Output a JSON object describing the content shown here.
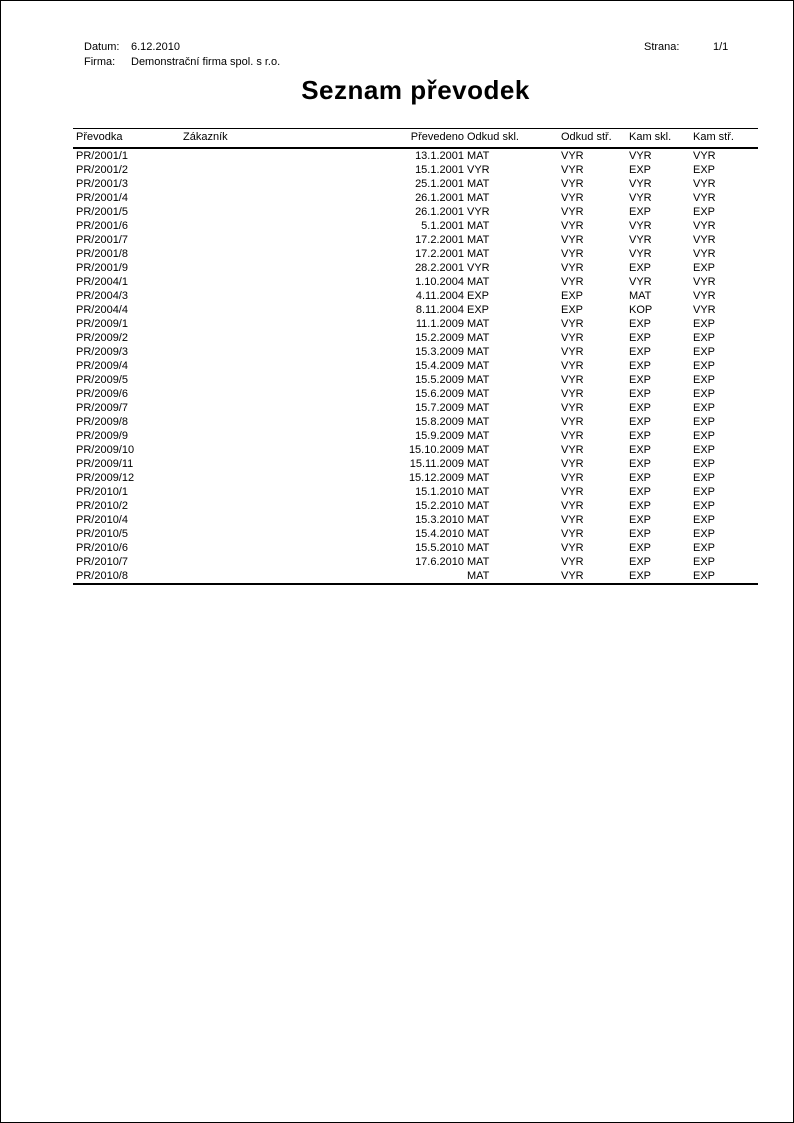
{
  "header": {
    "datum_label": "Datum:",
    "datum_value": "6.12.2010",
    "firma_label": "Firma:",
    "firma_value": "Demonstrační firma spol. s r.o.",
    "strana_label": "Strana:",
    "strana_value": "1/1"
  },
  "title": "Seznam převodek",
  "table": {
    "columns": [
      "Převodka",
      "Zákazník",
      "Převedeno",
      "Odkud skl.",
      "Odkud stř.",
      "Kam skl.",
      "Kam stř."
    ],
    "rows": [
      [
        "PR/2001/1",
        "",
        "13.1.2001",
        "MAT",
        "VYR",
        "VYR",
        "VYR"
      ],
      [
        "PR/2001/2",
        "",
        "15.1.2001",
        "VYR",
        "VYR",
        "EXP",
        "EXP"
      ],
      [
        "PR/2001/3",
        "",
        "25.1.2001",
        "MAT",
        "VYR",
        "VYR",
        "VYR"
      ],
      [
        "PR/2001/4",
        "",
        "26.1.2001",
        "MAT",
        "VYR",
        "VYR",
        "VYR"
      ],
      [
        "PR/2001/5",
        "",
        "26.1.2001",
        "VYR",
        "VYR",
        "EXP",
        "EXP"
      ],
      [
        "PR/2001/6",
        "",
        "5.1.2001",
        "MAT",
        "VYR",
        "VYR",
        "VYR"
      ],
      [
        "PR/2001/7",
        "",
        "17.2.2001",
        "MAT",
        "VYR",
        "VYR",
        "VYR"
      ],
      [
        "PR/2001/8",
        "",
        "17.2.2001",
        "MAT",
        "VYR",
        "VYR",
        "VYR"
      ],
      [
        "PR/2001/9",
        "",
        "28.2.2001",
        "VYR",
        "VYR",
        "EXP",
        "EXP"
      ],
      [
        "PR/2004/1",
        "",
        "1.10.2004",
        "MAT",
        "VYR",
        "VYR",
        "VYR"
      ],
      [
        "PR/2004/3",
        "",
        "4.11.2004",
        "EXP",
        "EXP",
        "MAT",
        "VYR"
      ],
      [
        "PR/2004/4",
        "",
        "8.11.2004",
        "EXP",
        "EXP",
        "KOP",
        "VYR"
      ],
      [
        "PR/2009/1",
        "",
        "11.1.2009",
        "MAT",
        "VYR",
        "EXP",
        "EXP"
      ],
      [
        "PR/2009/2",
        "",
        "15.2.2009",
        "MAT",
        "VYR",
        "EXP",
        "EXP"
      ],
      [
        "PR/2009/3",
        "",
        "15.3.2009",
        "MAT",
        "VYR",
        "EXP",
        "EXP"
      ],
      [
        "PR/2009/4",
        "",
        "15.4.2009",
        "MAT",
        "VYR",
        "EXP",
        "EXP"
      ],
      [
        "PR/2009/5",
        "",
        "15.5.2009",
        "MAT",
        "VYR",
        "EXP",
        "EXP"
      ],
      [
        "PR/2009/6",
        "",
        "15.6.2009",
        "MAT",
        "VYR",
        "EXP",
        "EXP"
      ],
      [
        "PR/2009/7",
        "",
        "15.7.2009",
        "MAT",
        "VYR",
        "EXP",
        "EXP"
      ],
      [
        "PR/2009/8",
        "",
        "15.8.2009",
        "MAT",
        "VYR",
        "EXP",
        "EXP"
      ],
      [
        "PR/2009/9",
        "",
        "15.9.2009",
        "MAT",
        "VYR",
        "EXP",
        "EXP"
      ],
      [
        "PR/2009/10",
        "",
        "15.10.2009",
        "MAT",
        "VYR",
        "EXP",
        "EXP"
      ],
      [
        "PR/2009/11",
        "",
        "15.11.2009",
        "MAT",
        "VYR",
        "EXP",
        "EXP"
      ],
      [
        "PR/2009/12",
        "",
        "15.12.2009",
        "MAT",
        "VYR",
        "EXP",
        "EXP"
      ],
      [
        "PR/2010/1",
        "",
        "15.1.2010",
        "MAT",
        "VYR",
        "EXP",
        "EXP"
      ],
      [
        "PR/2010/2",
        "",
        "15.2.2010",
        "MAT",
        "VYR",
        "EXP",
        "EXP"
      ],
      [
        "PR/2010/4",
        "",
        "15.3.2010",
        "MAT",
        "VYR",
        "EXP",
        "EXP"
      ],
      [
        "PR/2010/5",
        "",
        "15.4.2010",
        "MAT",
        "VYR",
        "EXP",
        "EXP"
      ],
      [
        "PR/2010/6",
        "",
        "15.5.2010",
        "MAT",
        "VYR",
        "EXP",
        "EXP"
      ],
      [
        "PR/2010/7",
        "",
        "17.6.2010",
        "MAT",
        "VYR",
        "EXP",
        "EXP"
      ],
      [
        "PR/2010/8",
        "",
        "",
        "MAT",
        "VYR",
        "EXP",
        "EXP"
      ]
    ]
  }
}
